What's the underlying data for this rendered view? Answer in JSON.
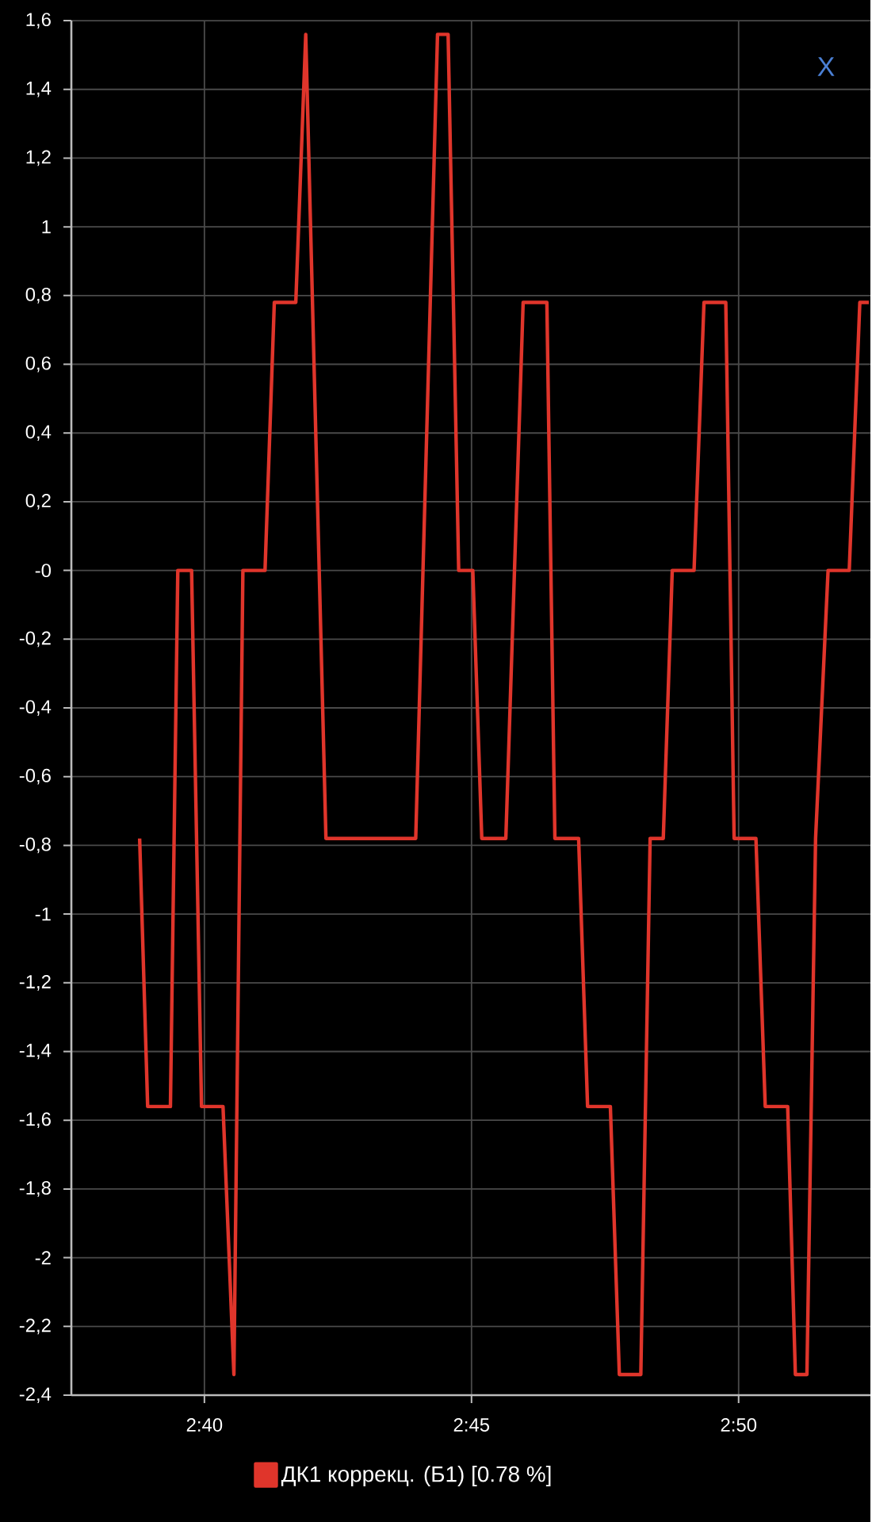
{
  "chart_data": {
    "type": "line",
    "x": [
      2.6465,
      2.649,
      2.6561,
      2.6584,
      2.6627,
      2.6658,
      2.6725,
      2.6759,
      2.6787,
      2.6856,
      2.6885,
      2.6952,
      2.6983,
      2.7046,
      2.7326,
      2.7394,
      2.7427,
      2.746,
      2.7504,
      2.7532,
      2.7607,
      2.7661,
      2.7735,
      2.776,
      2.7834,
      2.7862,
      2.7933,
      2.7961,
      2.8028,
      2.8057,
      2.8098,
      2.8126,
      2.8194,
      2.8225,
      2.8293,
      2.8319,
      2.8387,
      2.8416,
      2.8486,
      2.851,
      2.8546,
      2.8573,
      2.8612,
      2.8678,
      2.8711,
      2.8739
    ],
    "series": [
      {
        "name": "ДК1 коррекц. (Б1) [0.78 %]",
        "color": "#e0352b",
        "values": [
          -0.78,
          -1.56,
          -1.56,
          0,
          0,
          -1.56,
          -1.56,
          -2.34,
          0,
          0,
          0.78,
          0.78,
          1.56,
          -0.78,
          -0.78,
          1.56,
          1.56,
          0,
          0,
          -0.78,
          -0.78,
          0.78,
          0.78,
          -0.78,
          -0.78,
          -1.56,
          -1.56,
          -2.34,
          -2.34,
          -0.78,
          -0.78,
          0,
          0,
          0.78,
          0.78,
          -0.78,
          -0.78,
          -1.56,
          -1.56,
          -2.34,
          -2.34,
          -0.78,
          0,
          0,
          0.78,
          0.78
        ]
      }
    ],
    "xlim": [
      2.6252,
      2.8744
    ],
    "xticks": [
      {
        "value": 2.6667,
        "label": "2:40"
      },
      {
        "value": 2.75,
        "label": "2:45"
      },
      {
        "value": 2.8333,
        "label": "2:50"
      }
    ],
    "ylim": [
      -2.4,
      1.6
    ],
    "yticks": [
      {
        "value": -2.4,
        "label": "-2,4"
      },
      {
        "value": -2.2,
        "label": "-2,2"
      },
      {
        "value": -2,
        "label": "-2"
      },
      {
        "value": -1.8,
        "label": "-1,8"
      },
      {
        "value": -1.6,
        "label": "-1,6"
      },
      {
        "value": -1.4,
        "label": "-1,4"
      },
      {
        "value": -1.2,
        "label": "-1,2"
      },
      {
        "value": -1,
        "label": "-1"
      },
      {
        "value": -0.8,
        "label": "-0,8"
      },
      {
        "value": -0.6,
        "label": "-0,6"
      },
      {
        "value": -0.4,
        "label": "-0,4"
      },
      {
        "value": -0.2,
        "label": "-0,2"
      },
      {
        "value": 0,
        "label": "-0"
      },
      {
        "value": 0.2,
        "label": "0,2"
      },
      {
        "value": 0.4,
        "label": "0,4"
      },
      {
        "value": 0.6,
        "label": "0,6"
      },
      {
        "value": 0.8,
        "label": "0,8"
      },
      {
        "value": 1,
        "label": "1"
      },
      {
        "value": 1.2,
        "label": "1,2"
      },
      {
        "value": 1.4,
        "label": "1,4"
      },
      {
        "value": 1.6,
        "label": "1,6"
      }
    ],
    "grid": true,
    "legend": "bottom",
    "annotations": [
      "X"
    ]
  }
}
